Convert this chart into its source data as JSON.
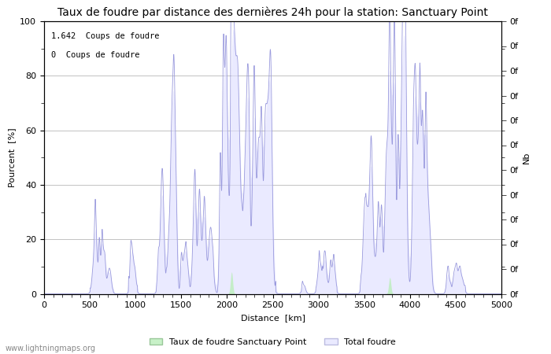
{
  "title": "Taux de foudre par distance des dernières 24h pour la station: Sanctuary Point",
  "ylabel_left": "Pourcent  [%]",
  "ylabel_right": "Nb",
  "xlabel": "Distance  [km]",
  "ylim": [
    0,
    100
  ],
  "xlim": [
    0,
    5000
  ],
  "yticks_left": [
    0,
    20,
    40,
    60,
    80,
    100
  ],
  "xticks": [
    0,
    500,
    1000,
    1500,
    2000,
    2500,
    3000,
    3500,
    4000,
    4500,
    5000
  ],
  "annotation1": "1.642  Coups de foudre",
  "annotation2": "0  Coups de foudre",
  "legend_label1": "Taux de foudre Sanctuary Point",
  "legend_label2": "Total foudre",
  "color_line": "#9999dd",
  "color_fill_station": "#bbeebb",
  "color_fill_total": "#ddddff",
  "watermark": "www.lightningmaps.org",
  "title_fontsize": 10,
  "axis_fontsize": 8,
  "tick_fontsize": 8
}
